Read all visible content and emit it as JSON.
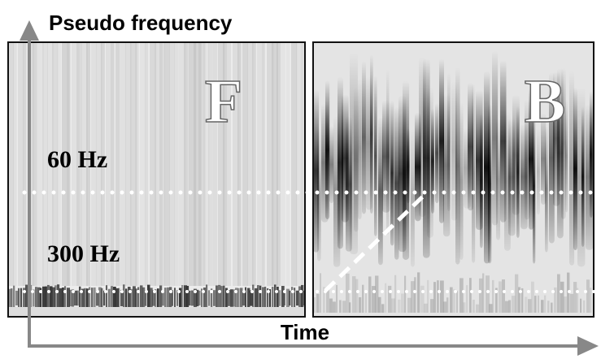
{
  "header": {
    "title": "Pseudo frequency"
  },
  "axes": {
    "x_label": "Time"
  },
  "panels": [
    {
      "label": "F"
    },
    {
      "label": "B"
    }
  ],
  "annotations": [
    "60 Hz",
    "300 Hz"
  ]
}
